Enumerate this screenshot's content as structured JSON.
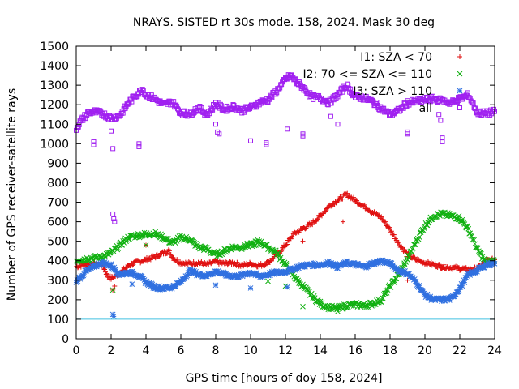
{
  "chart_data": {
    "type": "scatter",
    "title": "NRAYS. SISTED rt 30s mode. 158, 2024. Mask 30 deg",
    "xlabel": "GPS time [hours of doy 158, 2024]",
    "ylabel": "Number of GPS receiver-satellite rays",
    "xlim": [
      0,
      24
    ],
    "ylim": [
      0,
      1500
    ],
    "xticks": [
      0,
      2,
      4,
      6,
      8,
      10,
      12,
      14,
      16,
      18,
      20,
      22,
      24
    ],
    "yticks": [
      0,
      100,
      200,
      300,
      400,
      500,
      600,
      700,
      800,
      900,
      1000,
      1100,
      1200,
      1300,
      1400,
      1500
    ],
    "grid": false,
    "legend_position": "top-right",
    "reference_line": {
      "y": 100,
      "color": "#40c0e0"
    },
    "series": [
      {
        "name": "I1: SZA < 70",
        "marker": "+",
        "color": "#e01010",
        "points": [
          [
            0,
            370
          ],
          [
            0.5,
            380
          ],
          [
            1,
            385
          ],
          [
            1.5,
            380
          ],
          [
            1.8,
            320
          ],
          [
            2,
            310
          ],
          [
            2.5,
            335
          ],
          [
            3,
            375
          ],
          [
            3.5,
            395
          ],
          [
            4,
            405
          ],
          [
            4.5,
            420
          ],
          [
            5,
            440
          ],
          [
            5.3,
            450
          ],
          [
            5.6,
            410
          ],
          [
            6,
            390
          ],
          [
            6.5,
            385
          ],
          [
            7,
            390
          ],
          [
            7.5,
            380
          ],
          [
            8,
            395
          ],
          [
            8.5,
            385
          ],
          [
            9,
            390
          ],
          [
            9.5,
            375
          ],
          [
            10,
            385
          ],
          [
            10.5,
            375
          ],
          [
            11,
            390
          ],
          [
            11.5,
            430
          ],
          [
            12,
            480
          ],
          [
            12.5,
            540
          ],
          [
            13,
            565
          ],
          [
            13.5,
            590
          ],
          [
            14,
            630
          ],
          [
            14.5,
            680
          ],
          [
            15,
            710
          ],
          [
            15.5,
            740
          ],
          [
            16,
            710
          ],
          [
            16.5,
            680
          ],
          [
            17,
            650
          ],
          [
            17.5,
            620
          ],
          [
            18,
            560
          ],
          [
            18.5,
            490
          ],
          [
            19,
            430
          ],
          [
            19.5,
            405
          ],
          [
            20,
            390
          ],
          [
            20.5,
            380
          ],
          [
            21,
            370
          ],
          [
            21.5,
            365
          ],
          [
            22,
            360
          ],
          [
            22.5,
            355
          ],
          [
            23,
            360
          ],
          [
            23.5,
            400
          ],
          [
            24,
            405
          ]
        ],
        "outliers": [
          [
            2.1,
            250
          ],
          [
            2.2,
            270
          ],
          [
            4,
            480
          ],
          [
            13,
            500
          ],
          [
            15.3,
            600
          ],
          [
            19,
            300
          ]
        ]
      },
      {
        "name": "I2: 70 <= SZA <= 110",
        "marker": "x",
        "color": "#10b010",
        "points": [
          [
            0,
            400
          ],
          [
            0.5,
            410
          ],
          [
            1,
            415
          ],
          [
            1.5,
            420
          ],
          [
            2,
            440
          ],
          [
            2.5,
            480
          ],
          [
            3,
            520
          ],
          [
            3.5,
            530
          ],
          [
            4,
            535
          ],
          [
            4.5,
            540
          ],
          [
            5,
            520
          ],
          [
            5.5,
            490
          ],
          [
            6,
            520
          ],
          [
            6.5,
            510
          ],
          [
            7,
            470
          ],
          [
            7.5,
            460
          ],
          [
            8,
            430
          ],
          [
            8.5,
            450
          ],
          [
            9,
            470
          ],
          [
            9.5,
            470
          ],
          [
            10,
            480
          ],
          [
            10.5,
            500
          ],
          [
            11,
            470
          ],
          [
            11.5,
            440
          ],
          [
            12,
            380
          ],
          [
            12.5,
            320
          ],
          [
            13,
            270
          ],
          [
            13.5,
            220
          ],
          [
            14,
            180
          ],
          [
            14.5,
            160
          ],
          [
            15,
            155
          ],
          [
            15.5,
            170
          ],
          [
            16,
            175
          ],
          [
            16.5,
            170
          ],
          [
            17,
            180
          ],
          [
            17.5,
            200
          ],
          [
            18,
            270
          ],
          [
            18.5,
            330
          ],
          [
            19,
            410
          ],
          [
            19.5,
            500
          ],
          [
            20,
            580
          ],
          [
            20.5,
            630
          ],
          [
            21,
            640
          ],
          [
            21.5,
            630
          ],
          [
            22,
            620
          ],
          [
            22.5,
            560
          ],
          [
            23,
            460
          ],
          [
            23.5,
            390
          ],
          [
            24,
            400
          ]
        ],
        "outliers": [
          [
            2.1,
            250
          ],
          [
            4,
            480
          ],
          [
            9.8,
            490
          ],
          [
            10.3,
            480
          ],
          [
            11,
            295
          ],
          [
            12,
            270
          ],
          [
            13,
            165
          ],
          [
            15,
            140
          ]
        ]
      },
      {
        "name": "I3: SZA > 110",
        "marker": "*",
        "color": "#3070e0",
        "points": [
          [
            0,
            295
          ],
          [
            0.5,
            340
          ],
          [
            1,
            370
          ],
          [
            1.5,
            390
          ],
          [
            2,
            375
          ],
          [
            2.5,
            330
          ],
          [
            3,
            340
          ],
          [
            3.5,
            330
          ],
          [
            4,
            290
          ],
          [
            4.5,
            265
          ],
          [
            5,
            260
          ],
          [
            5.5,
            265
          ],
          [
            6,
            290
          ],
          [
            6.5,
            350
          ],
          [
            7,
            330
          ],
          [
            7.5,
            325
          ],
          [
            8,
            345
          ],
          [
            8.5,
            330
          ],
          [
            9,
            320
          ],
          [
            9.5,
            325
          ],
          [
            10,
            340
          ],
          [
            10.5,
            320
          ],
          [
            11,
            330
          ],
          [
            11.5,
            340
          ],
          [
            12,
            345
          ],
          [
            12.5,
            360
          ],
          [
            13,
            375
          ],
          [
            13.5,
            380
          ],
          [
            14,
            380
          ],
          [
            14.5,
            390
          ],
          [
            15,
            370
          ],
          [
            15.5,
            390
          ],
          [
            16,
            380
          ],
          [
            16.5,
            370
          ],
          [
            17,
            385
          ],
          [
            17.5,
            400
          ],
          [
            18,
            385
          ],
          [
            18.5,
            350
          ],
          [
            19,
            335
          ],
          [
            19.5,
            290
          ],
          [
            20,
            225
          ],
          [
            20.5,
            200
          ],
          [
            21,
            200
          ],
          [
            21.5,
            205
          ],
          [
            22,
            260
          ],
          [
            22.5,
            330
          ],
          [
            23,
            350
          ],
          [
            23.5,
            380
          ],
          [
            24,
            385
          ]
        ],
        "outliers": [
          [
            2.1,
            125
          ],
          [
            2.15,
            115
          ],
          [
            3.2,
            280
          ],
          [
            8,
            275
          ],
          [
            10,
            260
          ],
          [
            12.1,
            265
          ]
        ]
      },
      {
        "name": "all",
        "marker": "square",
        "color": "#a020f0",
        "points": [
          [
            0,
            1080
          ],
          [
            0.3,
            1120
          ],
          [
            0.7,
            1160
          ],
          [
            1,
            1165
          ],
          [
            1.5,
            1155
          ],
          [
            2,
            1130
          ],
          [
            2.5,
            1145
          ],
          [
            3,
            1210
          ],
          [
            3.5,
            1255
          ],
          [
            3.8,
            1280
          ],
          [
            4,
            1250
          ],
          [
            4.5,
            1230
          ],
          [
            5,
            1200
          ],
          [
            5.5,
            1215
          ],
          [
            6,
            1160
          ],
          [
            6.5,
            1150
          ],
          [
            7,
            1185
          ],
          [
            7.5,
            1150
          ],
          [
            8,
            1205
          ],
          [
            8.5,
            1175
          ],
          [
            9,
            1190
          ],
          [
            9.5,
            1170
          ],
          [
            10,
            1185
          ],
          [
            10.5,
            1210
          ],
          [
            11,
            1225
          ],
          [
            11.5,
            1270
          ],
          [
            12,
            1330
          ],
          [
            12.3,
            1350
          ],
          [
            12.7,
            1310
          ],
          [
            13,
            1290
          ],
          [
            13.5,
            1240
          ],
          [
            14,
            1235
          ],
          [
            14.5,
            1210
          ],
          [
            15,
            1250
          ],
          [
            15.5,
            1300
          ],
          [
            16,
            1240
          ],
          [
            16.5,
            1235
          ],
          [
            17,
            1215
          ],
          [
            17.5,
            1180
          ],
          [
            18,
            1150
          ],
          [
            18.5,
            1170
          ],
          [
            19,
            1210
          ],
          [
            19.5,
            1215
          ],
          [
            20,
            1225
          ],
          [
            20.5,
            1230
          ],
          [
            21,
            1220
          ],
          [
            21.5,
            1210
          ],
          [
            22,
            1230
          ],
          [
            22.5,
            1250
          ],
          [
            23,
            1160
          ],
          [
            23.5,
            1155
          ],
          [
            24,
            1165
          ]
        ],
        "outliers": [
          [
            1,
            1010
          ],
          [
            1,
            995
          ],
          [
            2,
            1065
          ],
          [
            2.1,
            975
          ],
          [
            2.1,
            640
          ],
          [
            2.15,
            615
          ],
          [
            2.2,
            600
          ],
          [
            3.6,
            1000
          ],
          [
            3.6,
            985
          ],
          [
            8,
            1100
          ],
          [
            8.1,
            1060
          ],
          [
            8.2,
            1050
          ],
          [
            10,
            1015
          ],
          [
            10.9,
            1005
          ],
          [
            10.9,
            995
          ],
          [
            12.1,
            1075
          ],
          [
            13,
            1050
          ],
          [
            13,
            1040
          ],
          [
            14.6,
            1140
          ],
          [
            15,
            1100
          ],
          [
            19,
            1060
          ],
          [
            19,
            1050
          ],
          [
            21,
            1030
          ],
          [
            21,
            1010
          ],
          [
            20.8,
            1150
          ],
          [
            20.9,
            1120
          ]
        ]
      }
    ]
  }
}
